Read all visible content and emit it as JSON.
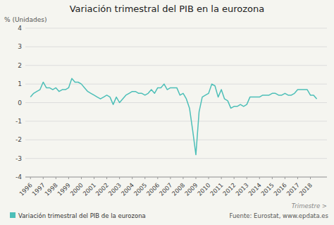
{
  "chart_data": {
    "type": "line",
    "title": "Variación trimestral del PIB en la eurozona",
    "ylabel": "% (Unidades)",
    "xlabel": "Trimestre >",
    "annotations": [
      "Fuente: Eurostat, www.epdata.es"
    ],
    "legend": "bottom",
    "grid": true,
    "xlim": [
      1995.6,
      2019.3
    ],
    "xticks": [
      1996,
      1997,
      1998,
      1999,
      2000,
      2001,
      2002,
      2003,
      2004,
      2005,
      2006,
      2007,
      2008,
      2009,
      2010,
      2011,
      2012,
      2013,
      2014,
      2015,
      2016,
      2017,
      2018
    ],
    "ylim": [
      -4,
      4
    ],
    "yticks": [
      -4,
      -3,
      -2,
      -1,
      0,
      1,
      2,
      3,
      4
    ],
    "x": [
      1996,
      1996.25,
      1996.5,
      1996.75,
      1997,
      1997.25,
      1997.5,
      1997.75,
      1998,
      1998.25,
      1998.5,
      1998.75,
      1999,
      1999.25,
      1999.5,
      1999.75,
      2000,
      2000.25,
      2000.5,
      2000.75,
      2001,
      2001.25,
      2001.5,
      2001.75,
      2002,
      2002.25,
      2002.5,
      2002.75,
      2003,
      2003.25,
      2003.5,
      2003.75,
      2004,
      2004.25,
      2004.5,
      2004.75,
      2005,
      2005.25,
      2005.5,
      2005.75,
      2006,
      2006.25,
      2006.5,
      2006.75,
      2007,
      2007.25,
      2007.5,
      2007.75,
      2008,
      2008.25,
      2008.5,
      2008.75,
      2009,
      2009.25,
      2009.5,
      2009.75,
      2010,
      2010.25,
      2010.5,
      2010.75,
      2011,
      2011.25,
      2011.5,
      2011.75,
      2012,
      2012.25,
      2012.5,
      2012.75,
      2013,
      2013.25,
      2013.5,
      2013.75,
      2014,
      2014.25,
      2014.5,
      2014.75,
      2015,
      2015.25,
      2015.5,
      2015.75,
      2016,
      2016.25,
      2016.5,
      2016.75,
      2017,
      2017.25,
      2017.5,
      2017.75,
      2018,
      2018.25,
      2018.5
    ],
    "series": [
      {
        "name": "Variación trimestral del PIB de la eurozona",
        "color": "#4dbfb8",
        "values": [
          0.3,
          0.5,
          0.6,
          0.7,
          1.1,
          0.8,
          0.8,
          0.7,
          0.8,
          0.6,
          0.7,
          0.7,
          0.8,
          1.3,
          1.1,
          1.1,
          1.0,
          0.8,
          0.6,
          0.5,
          0.4,
          0.3,
          0.2,
          0.3,
          0.4,
          0.3,
          -0.1,
          0.3,
          0.0,
          0.2,
          0.4,
          0.5,
          0.6,
          0.6,
          0.5,
          0.5,
          0.4,
          0.5,
          0.7,
          0.5,
          0.8,
          0.8,
          1.0,
          0.7,
          0.8,
          0.8,
          0.8,
          0.4,
          0.5,
          0.2,
          -0.3,
          -1.5,
          -2.8,
          -0.5,
          0.3,
          0.4,
          0.5,
          1.0,
          0.9,
          0.3,
          0.7,
          0.2,
          0.1,
          -0.3,
          -0.2,
          -0.2,
          -0.1,
          -0.2,
          -0.1,
          0.3,
          0.3,
          0.3,
          0.3,
          0.4,
          0.4,
          0.4,
          0.5,
          0.5,
          0.4,
          0.4,
          0.5,
          0.4,
          0.4,
          0.5,
          0.7,
          0.7,
          0.7,
          0.7,
          0.4,
          0.4,
          0.2
        ]
      }
    ]
  }
}
